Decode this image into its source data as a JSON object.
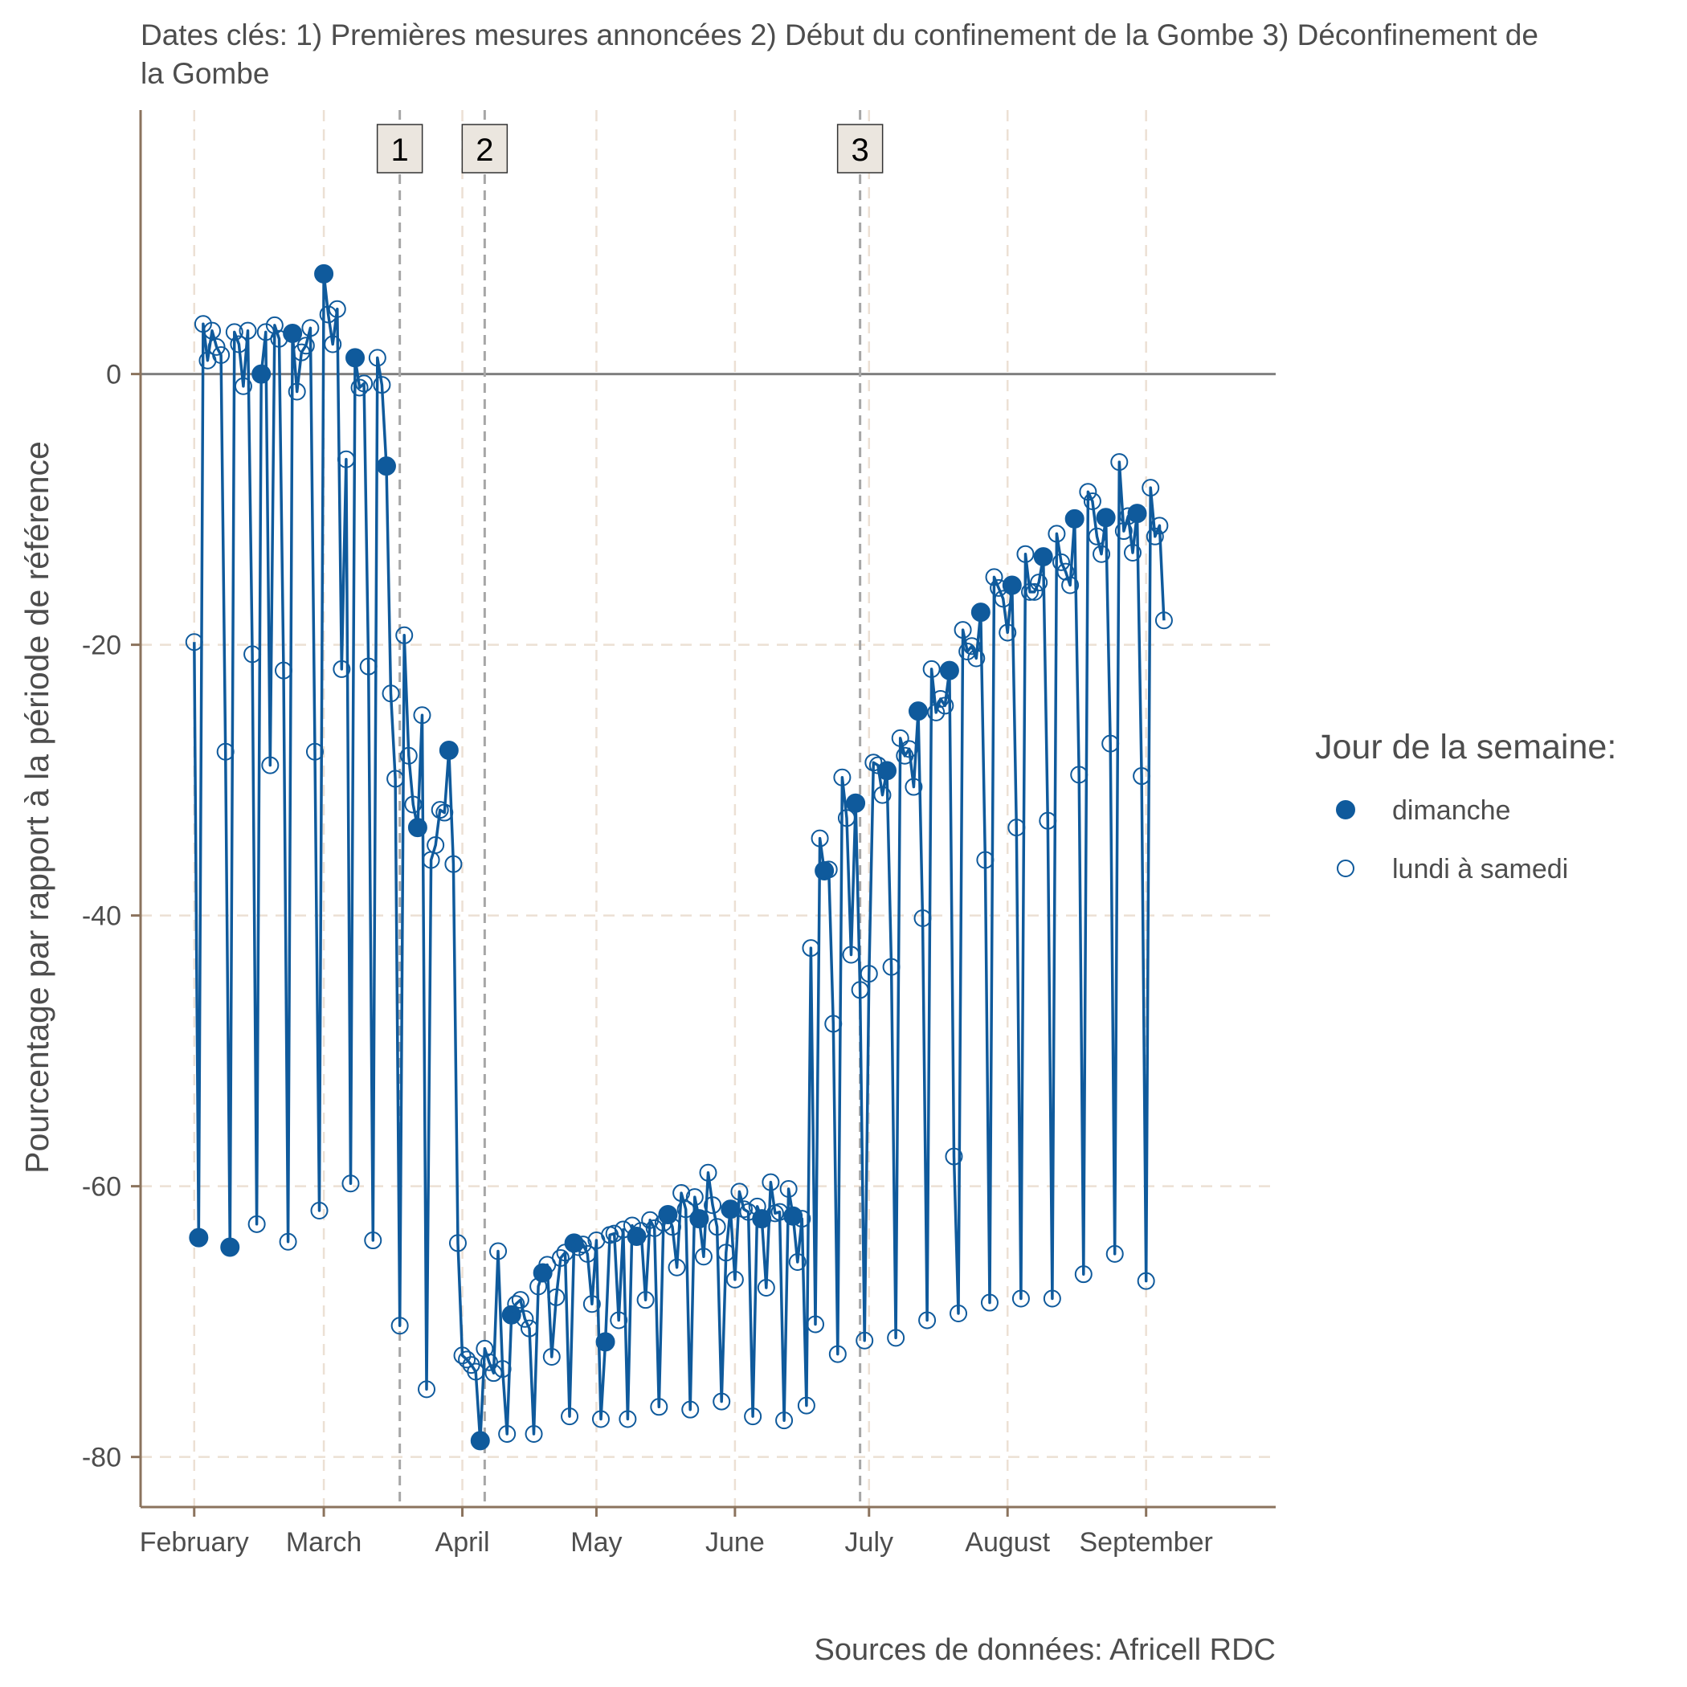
{
  "chart_data": {
    "type": "line",
    "title": "Dates clés: 1) Premières mesures annoncées 2) Début du confinement de la Gombe 3) Déconfinement de",
    "title_line2": "la Gombe",
    "xlabel": "",
    "ylabel": "Pourcentage par rapport à la période de référence",
    "caption": "Sources de données: Africell RDC",
    "x_ticks": [
      {
        "date": "2020-02-01",
        "label": "February"
      },
      {
        "date": "2020-03-01",
        "label": "March"
      },
      {
        "date": "2020-04-01",
        "label": "April"
      },
      {
        "date": "2020-05-01",
        "label": "May"
      },
      {
        "date": "2020-06-01",
        "label": "June"
      },
      {
        "date": "2020-07-01",
        "label": "July"
      },
      {
        "date": "2020-08-01",
        "label": "August"
      },
      {
        "date": "2020-09-01",
        "label": "September"
      }
    ],
    "x_range": [
      "2020-01-20",
      "2020-09-30"
    ],
    "y_ticks": [
      0,
      -20,
      -40,
      -60,
      -80
    ],
    "ylim": [
      -83.7,
      19.5
    ],
    "grid": true,
    "reference_line_y": 0,
    "events": [
      {
        "label": "1",
        "date": "2020-03-18"
      },
      {
        "label": "2",
        "date": "2020-04-06"
      },
      {
        "label": "3",
        "date": "2020-06-29"
      }
    ],
    "legend": {
      "title": "Jour de la semaine:",
      "position": "right",
      "entries": [
        {
          "label": "dimanche",
          "marker": "filled"
        },
        {
          "label": "lundi à samedi",
          "marker": "open"
        }
      ]
    },
    "colors": {
      "series": "#0f5a9c",
      "event_line": "#a6a6a6",
      "grid": "#ece0d4",
      "axis": "#8b735d",
      "event_label_bg": "#ebe6df"
    },
    "series": [
      {
        "start_date": "2020-02-01",
        "values": [
          -19.8,
          -63.8,
          3.7,
          1.0,
          3.2,
          2.0,
          1.4,
          -27.9,
          -64.5,
          3.1,
          2.2,
          -0.9,
          3.2,
          -20.7,
          -62.8,
          0.0,
          3.1,
          -28.9,
          3.6,
          2.6,
          -21.9,
          -64.1,
          3.0,
          -1.3,
          1.6,
          2.1,
          3.4,
          -27.9,
          -61.8,
          7.4,
          4.4,
          2.2,
          4.8,
          -21.8,
          -6.3,
          -59.8,
          1.2,
          -1.0,
          -0.7,
          -21.6,
          -64.0,
          1.2,
          -0.8,
          -6.8,
          -23.6,
          -29.9,
          -70.3,
          -19.3,
          -28.2,
          -31.8,
          -33.5,
          -25.2,
          -75.0,
          -35.9,
          -34.8,
          -32.2,
          -32.4,
          -27.8,
          -36.2,
          -64.2,
          -72.5,
          -72.8,
          -73.2,
          -73.7,
          -78.8,
          -72.0,
          -73.0,
          -73.8,
          -64.8,
          -73.5,
          -78.3,
          -69.5,
          -68.7,
          -68.4,
          -69.8,
          -70.5,
          -78.3,
          -67.4,
          -66.4,
          -65.8,
          -72.6,
          -68.2,
          -65.3,
          -64.9,
          -77.0,
          -64.2,
          -64.5,
          -64.3,
          -65.0,
          -68.7,
          -64.0,
          -77.2,
          -71.5,
          -63.6,
          -63.5,
          -69.9,
          -63.2,
          -77.2,
          -62.9,
          -63.7,
          -63.3,
          -68.4,
          -62.5,
          -63.1,
          -76.3,
          -62.7,
          -62.1,
          -63.0,
          -66.0,
          -60.5,
          -61.7,
          -76.5,
          -60.8,
          -62.4,
          -65.2,
          -59.0,
          -61.4,
          -63.0,
          -75.9,
          -64.9,
          -61.7,
          -66.9,
          -60.4,
          -61.7,
          -61.9,
          -77.0,
          -61.5,
          -62.4,
          -67.5,
          -59.7,
          -62.0,
          -61.9,
          -77.3,
          -60.2,
          -62.2,
          -65.6,
          -62.4,
          -76.2,
          -42.4,
          -70.2,
          -34.3,
          -36.7,
          -36.6,
          -48.0,
          -72.4,
          -29.8,
          -32.8,
          -42.9,
          -31.7,
          -45.5,
          -71.4,
          -44.3,
          -28.7,
          -28.9,
          -31.1,
          -29.3,
          -43.8,
          -71.2,
          -26.9,
          -28.2,
          -27.7,
          -30.5,
          -24.9,
          -40.2,
          -69.9,
          -21.8,
          -25.0,
          -24.0,
          -24.5,
          -21.9,
          -57.8,
          -69.4,
          -18.9,
          -20.5,
          -20.1,
          -21.0,
          -17.6,
          -35.9,
          -68.6,
          -15.0,
          -15.8,
          -16.6,
          -19.1,
          -15.6,
          -33.5,
          -68.3,
          -13.3,
          -16.1,
          -16.1,
          -15.4,
          -13.5,
          -33.0,
          -68.3,
          -11.8,
          -13.9,
          -14.6,
          -15.6,
          -10.7,
          -29.6,
          -66.5,
          -8.7,
          -9.4,
          -12.0,
          -13.3,
          -10.6,
          -27.3,
          -65.0,
          -6.5,
          -11.6,
          -10.5,
          -13.2,
          -10.3,
          -29.7,
          -67.0,
          -8.4,
          -12.0,
          -11.2,
          -18.2
        ]
      }
    ]
  }
}
